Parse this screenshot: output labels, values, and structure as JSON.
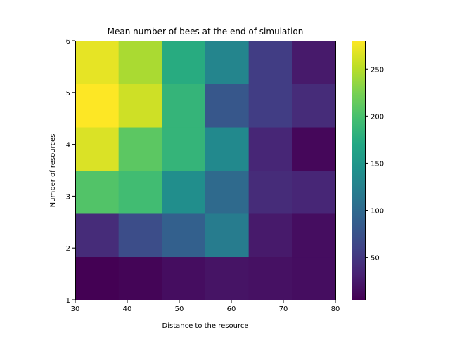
{
  "chart_data": {
    "type": "heatmap",
    "title": "Mean number of bees at the end of simulation",
    "xlabel": "Distance to the resource",
    "ylabel": "Number of resources",
    "x_edges": [
      30,
      38.333,
      46.667,
      55,
      63.333,
      71.667,
      80
    ],
    "y_edges": [
      1,
      1.833,
      2.667,
      3.5,
      4.333,
      5.167,
      6
    ],
    "xlim": [
      30,
      80
    ],
    "ylim": [
      1,
      6
    ],
    "x_ticks": [
      "30",
      "40",
      "50",
      "60",
      "70",
      "80"
    ],
    "x_tick_values": [
      30,
      40,
      50,
      60,
      70,
      80
    ],
    "y_ticks": [
      "1",
      "2",
      "3",
      "4",
      "5",
      "6"
    ],
    "y_tick_values": [
      1,
      2,
      3,
      4,
      5,
      6
    ],
    "values_rows_bottom_to_top": [
      [
        5,
        8,
        15,
        20,
        18,
        15
      ],
      [
        40,
        70,
        90,
        120,
        25,
        15
      ],
      [
        205,
        195,
        140,
        100,
        40,
        35
      ],
      [
        265,
        210,
        185,
        135,
        35,
        10
      ],
      [
        280,
        260,
        185,
        80,
        55,
        40
      ],
      [
        270,
        245,
        175,
        130,
        55,
        25
      ]
    ],
    "colorbar": {
      "vmin": 5,
      "vmax": 280,
      "ticks": [
        "50",
        "100",
        "150",
        "200",
        "250"
      ],
      "tick_values": [
        50,
        100,
        150,
        200,
        250
      ],
      "colormap": "viridis"
    },
    "grid": false
  }
}
